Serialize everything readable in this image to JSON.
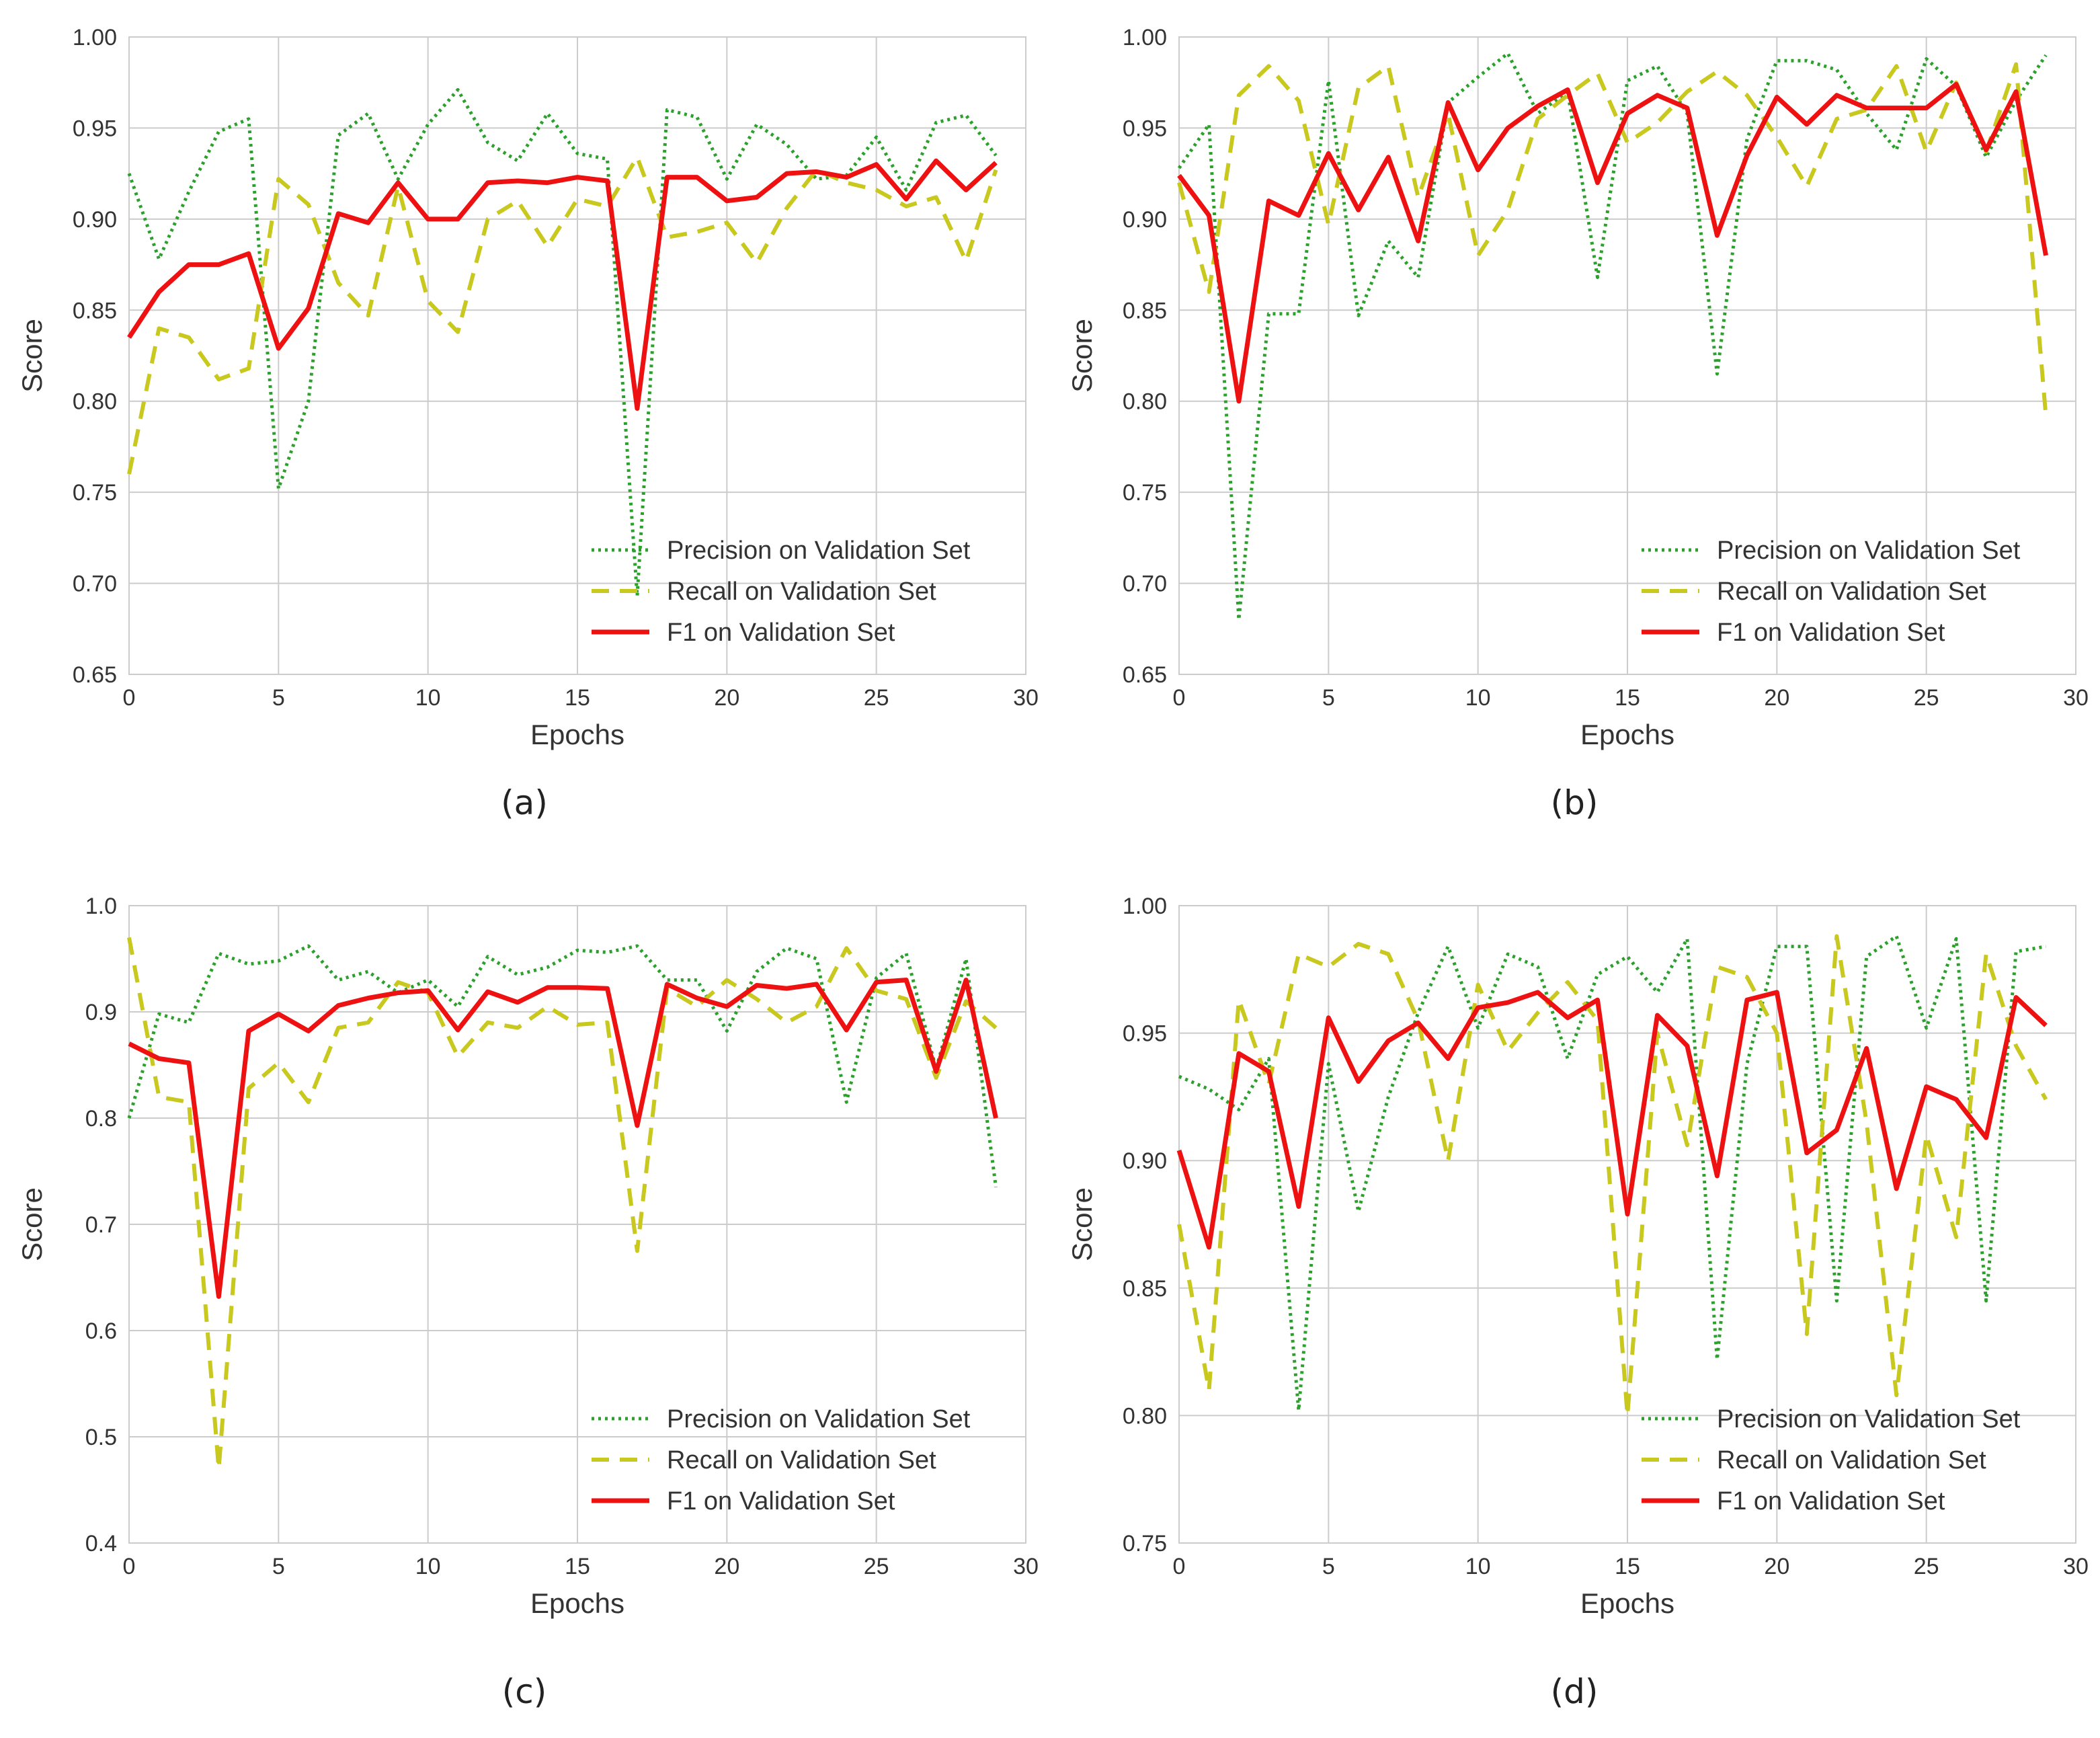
{
  "chart_data": [
    {
      "type": "line",
      "caption": "(a)",
      "xlabel": "Epochs",
      "ylabel": "Score",
      "xlim": [
        0,
        30
      ],
      "ylim": [
        0.65,
        1.0
      ],
      "xticks": [
        "0",
        "5",
        "10",
        "15",
        "20",
        "25",
        "30"
      ],
      "yticks": [
        "0.65",
        "0.70",
        "0.75",
        "0.80",
        "0.85",
        "0.90",
        "0.95",
        "1.00"
      ],
      "grid": true,
      "legend_position": "bottom-right",
      "x": [
        0,
        1,
        2,
        3,
        4,
        5,
        6,
        7,
        8,
        9,
        10,
        11,
        12,
        13,
        14,
        15,
        16,
        17,
        18,
        19,
        20,
        21,
        22,
        23,
        24,
        25,
        26,
        27,
        28,
        29
      ],
      "series": [
        {
          "name": "Precision on Validation Set",
          "style": "dotted",
          "color": "#2ca02c",
          "values": [
            0.925,
            0.878,
            0.915,
            0.948,
            0.955,
            0.752,
            0.8,
            0.946,
            0.958,
            0.922,
            0.952,
            0.971,
            0.942,
            0.932,
            0.958,
            0.936,
            0.933,
            0.693,
            0.96,
            0.956,
            0.922,
            0.952,
            0.941,
            0.922,
            0.924,
            0.945,
            0.916,
            0.953,
            0.957,
            0.935
          ]
        },
        {
          "name": "Recall on Validation Set",
          "style": "dashed",
          "color": "#c8c81e",
          "values": [
            0.76,
            0.84,
            0.835,
            0.812,
            0.818,
            0.922,
            0.908,
            0.865,
            0.847,
            0.918,
            0.855,
            0.838,
            0.9,
            0.91,
            0.885,
            0.911,
            0.907,
            0.934,
            0.89,
            0.893,
            0.898,
            0.876,
            0.906,
            0.927,
            0.92,
            0.916,
            0.907,
            0.912,
            0.877,
            0.927
          ]
        },
        {
          "name": "F1 on Validation Set",
          "style": "solid",
          "color": "#ee1111",
          "values": [
            0.835,
            0.86,
            0.875,
            0.875,
            0.881,
            0.829,
            0.851,
            0.903,
            0.898,
            0.92,
            0.9,
            0.9,
            0.92,
            0.921,
            0.92,
            0.923,
            0.921,
            0.796,
            0.923,
            0.923,
            0.91,
            0.912,
            0.925,
            0.926,
            0.923,
            0.93,
            0.911,
            0.932,
            0.916,
            0.931
          ]
        }
      ]
    },
    {
      "type": "line",
      "caption": "(b)",
      "xlabel": "Epochs",
      "ylabel": "Score",
      "xlim": [
        0,
        30
      ],
      "ylim": [
        0.65,
        1.0
      ],
      "xticks": [
        "0",
        "5",
        "10",
        "15",
        "20",
        "25",
        "30"
      ],
      "yticks": [
        "0.65",
        "0.70",
        "0.75",
        "0.80",
        "0.85",
        "0.90",
        "0.95",
        "1.00"
      ],
      "grid": true,
      "legend_position": "bottom-right",
      "x": [
        0,
        1,
        2,
        3,
        4,
        5,
        6,
        7,
        8,
        9,
        10,
        11,
        12,
        13,
        14,
        15,
        16,
        17,
        18,
        19,
        20,
        21,
        22,
        23,
        24,
        25,
        26,
        27,
        28,
        29
      ],
      "series": [
        {
          "name": "Precision on Validation Set",
          "style": "dotted",
          "color": "#2ca02c",
          "values": [
            0.928,
            0.952,
            0.68,
            0.848,
            0.848,
            0.976,
            0.847,
            0.888,
            0.868,
            0.964,
            0.978,
            0.991,
            0.958,
            0.97,
            0.868,
            0.976,
            0.984,
            0.958,
            0.815,
            0.944,
            0.987,
            0.987,
            0.982,
            0.958,
            0.938,
            0.988,
            0.973,
            0.934,
            0.965,
            0.99
          ]
        },
        {
          "name": "Recall on Validation Set",
          "style": "dashed",
          "color": "#c8c81e",
          "values": [
            0.92,
            0.86,
            0.968,
            0.984,
            0.965,
            0.897,
            0.972,
            0.984,
            0.912,
            0.958,
            0.88,
            0.905,
            0.955,
            0.968,
            0.98,
            0.942,
            0.953,
            0.97,
            0.981,
            0.968,
            0.945,
            0.918,
            0.955,
            0.96,
            0.984,
            0.937,
            0.975,
            0.937,
            0.985,
            0.792
          ]
        },
        {
          "name": "F1 on Validation Set",
          "style": "solid",
          "color": "#ee1111",
          "values": [
            0.924,
            0.902,
            0.8,
            0.91,
            0.902,
            0.936,
            0.905,
            0.934,
            0.888,
            0.964,
            0.927,
            0.95,
            0.962,
            0.971,
            0.92,
            0.958,
            0.968,
            0.961,
            0.891,
            0.935,
            0.967,
            0.952,
            0.968,
            0.961,
            0.961,
            0.961,
            0.974,
            0.938,
            0.97,
            0.88
          ]
        }
      ]
    },
    {
      "type": "line",
      "caption": "(c)",
      "xlabel": "Epochs",
      "ylabel": "Score",
      "xlim": [
        0,
        30
      ],
      "ylim": [
        0.4,
        1.0
      ],
      "xticks": [
        "0",
        "5",
        "10",
        "15",
        "20",
        "25",
        "30"
      ],
      "yticks": [
        "0.4",
        "0.5",
        "0.6",
        "0.7",
        "0.8",
        "0.9",
        "1.0"
      ],
      "grid": true,
      "legend_position": "bottom-right",
      "x": [
        0,
        1,
        2,
        3,
        4,
        5,
        6,
        7,
        8,
        9,
        10,
        11,
        12,
        13,
        14,
        15,
        16,
        17,
        18,
        19,
        20,
        21,
        22,
        23,
        24,
        25,
        26,
        27,
        28,
        29
      ],
      "series": [
        {
          "name": "Precision on Validation Set",
          "style": "dotted",
          "color": "#2ca02c",
          "values": [
            0.8,
            0.898,
            0.89,
            0.955,
            0.945,
            0.948,
            0.962,
            0.93,
            0.938,
            0.918,
            0.93,
            0.905,
            0.952,
            0.935,
            0.942,
            0.958,
            0.956,
            0.962,
            0.93,
            0.93,
            0.882,
            0.938,
            0.96,
            0.95,
            0.815,
            0.932,
            0.955,
            0.846,
            0.95,
            0.735
          ]
        },
        {
          "name": "Recall on Validation Set",
          "style": "dashed",
          "color": "#c8c81e",
          "values": [
            0.97,
            0.82,
            0.815,
            0.47,
            0.828,
            0.852,
            0.815,
            0.885,
            0.89,
            0.928,
            0.918,
            0.858,
            0.89,
            0.885,
            0.905,
            0.888,
            0.89,
            0.675,
            0.922,
            0.905,
            0.93,
            0.912,
            0.89,
            0.905,
            0.96,
            0.92,
            0.912,
            0.838,
            0.91,
            0.885
          ]
        },
        {
          "name": "F1 on Validation Set",
          "style": "solid",
          "color": "#ee1111",
          "values": [
            0.87,
            0.856,
            0.852,
            0.632,
            0.882,
            0.898,
            0.882,
            0.906,
            0.913,
            0.918,
            0.92,
            0.883,
            0.919,
            0.909,
            0.923,
            0.923,
            0.922,
            0.793,
            0.926,
            0.913,
            0.905,
            0.925,
            0.922,
            0.926,
            0.883,
            0.928,
            0.93,
            0.844,
            0.93,
            0.8
          ]
        }
      ]
    },
    {
      "type": "line",
      "caption": "(d)",
      "xlabel": "Epochs",
      "ylabel": "Score",
      "xlim": [
        0,
        30
      ],
      "ylim": [
        0.75,
        1.0
      ],
      "xticks": [
        "0",
        "5",
        "10",
        "15",
        "20",
        "25",
        "30"
      ],
      "yticks": [
        "0.75",
        "0.80",
        "0.85",
        "0.90",
        "0.95",
        "1.00"
      ],
      "grid": true,
      "legend_position": "bottom-right",
      "x": [
        0,
        1,
        2,
        3,
        4,
        5,
        6,
        7,
        8,
        9,
        10,
        11,
        12,
        13,
        14,
        15,
        16,
        17,
        18,
        19,
        20,
        21,
        22,
        23,
        24,
        25,
        26,
        27,
        28,
        29
      ],
      "series": [
        {
          "name": "Precision on Validation Set",
          "style": "dotted",
          "color": "#2ca02c",
          "values": [
            0.933,
            0.928,
            0.92,
            0.94,
            0.802,
            0.938,
            0.88,
            0.925,
            0.958,
            0.984,
            0.952,
            0.981,
            0.976,
            0.94,
            0.973,
            0.98,
            0.966,
            0.987,
            0.822,
            0.938,
            0.984,
            0.984,
            0.845,
            0.98,
            0.988,
            0.952,
            0.987,
            0.845,
            0.982,
            0.984
          ]
        },
        {
          "name": "Recall on Validation Set",
          "style": "dashed",
          "color": "#c8c81e",
          "values": [
            0.875,
            0.81,
            0.963,
            0.93,
            0.981,
            0.976,
            0.985,
            0.981,
            0.955,
            0.9,
            0.969,
            0.943,
            0.958,
            0.97,
            0.955,
            0.8,
            0.95,
            0.906,
            0.976,
            0.972,
            0.95,
            0.832,
            0.988,
            0.915,
            0.808,
            0.91,
            0.87,
            0.981,
            0.945,
            0.924
          ]
        },
        {
          "name": "F1 on Validation Set",
          "style": "solid",
          "color": "#ee1111",
          "values": [
            0.904,
            0.866,
            0.942,
            0.935,
            0.882,
            0.956,
            0.931,
            0.947,
            0.954,
            0.94,
            0.96,
            0.962,
            0.966,
            0.956,
            0.963,
            0.879,
            0.957,
            0.945,
            0.894,
            0.963,
            0.966,
            0.903,
            0.912,
            0.944,
            0.889,
            0.929,
            0.924,
            0.909,
            0.964,
            0.953
          ]
        }
      ]
    }
  ]
}
